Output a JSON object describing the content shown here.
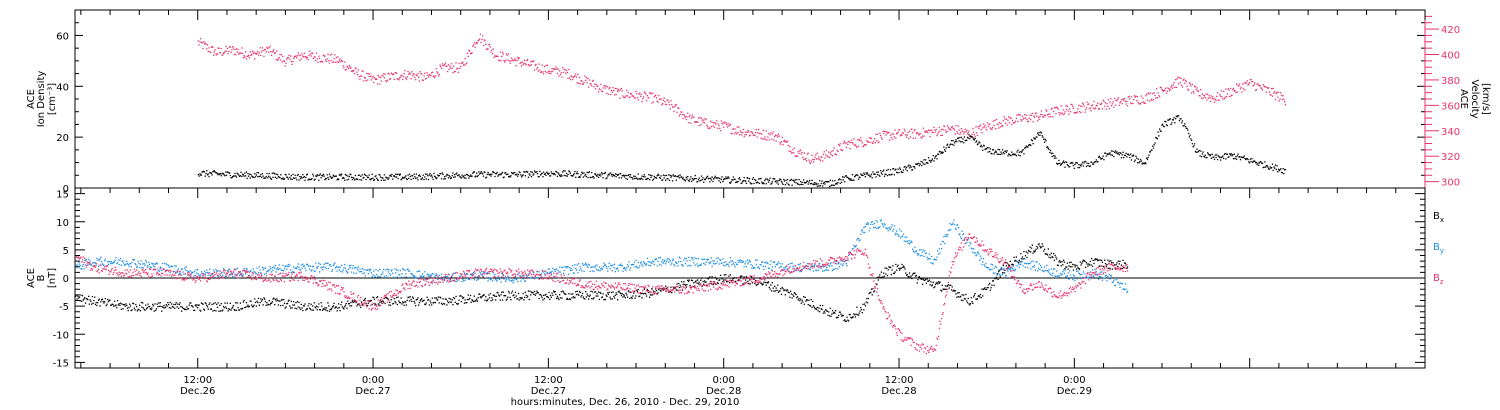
{
  "chart_data": [
    {
      "type": "scatter",
      "panel": "top",
      "ylabel": [
        "ACE",
        "Ion Density",
        "[cm⁻³]"
      ],
      "ylabel_right": [
        "ACE",
        "Velocity",
        "[km/s]"
      ],
      "ylim": [
        0,
        70
      ],
      "yticks": [
        0,
        20,
        40,
        60
      ],
      "ylim_right": [
        295,
        435
      ],
      "yticks_right": [
        300,
        320,
        340,
        360,
        380,
        400,
        420
      ],
      "series": [
        {
          "name": "Ion Density",
          "axis": "left",
          "color": "#000000",
          "x": [
            0,
            0.1,
            0.2,
            0.3,
            0.4,
            0.5,
            0.6,
            0.7,
            0.8,
            0.9,
            1.0,
            1.1,
            1.2,
            1.3,
            1.4,
            1.5,
            1.6,
            1.7,
            1.8,
            1.85,
            1.9,
            1.95,
            2.0,
            2.05,
            2.1,
            2.15,
            2.2,
            2.25,
            2.3,
            2.35,
            2.4,
            2.45,
            2.5,
            2.55,
            2.6,
            2.65,
            2.7,
            2.75,
            2.8,
            2.85,
            2.9,
            2.95,
            3.0,
            3.05,
            3.1
          ],
          "y": [
            6,
            5.5,
            5,
            4.5,
            4.5,
            4.5,
            4.5,
            5,
            5.5,
            5.5,
            6,
            5.5,
            5,
            4.5,
            4,
            3.5,
            3,
            2.5,
            2,
            4,
            5,
            6,
            7,
            9,
            12,
            18,
            20,
            15,
            14,
            14,
            22,
            10,
            9,
            10,
            14,
            13,
            10,
            25,
            28,
            14,
            12,
            13,
            11,
            9,
            7
          ]
        },
        {
          "name": "Velocity",
          "axis": "right",
          "color": "#e8336b",
          "x": [
            0,
            0.05,
            0.1,
            0.15,
            0.2,
            0.25,
            0.3,
            0.35,
            0.4,
            0.45,
            0.5,
            0.55,
            0.6,
            0.65,
            0.7,
            0.75,
            0.8,
            0.85,
            0.9,
            0.95,
            1.0,
            1.05,
            1.1,
            1.15,
            1.2,
            1.25,
            1.3,
            1.35,
            1.4,
            1.45,
            1.5,
            1.55,
            1.6,
            1.65,
            1.7,
            1.75,
            1.8,
            1.85,
            1.9,
            1.95,
            2.0,
            2.05,
            2.1,
            2.15,
            2.2,
            2.25,
            2.3,
            2.35,
            2.4,
            2.45,
            2.5,
            2.55,
            2.6,
            2.65,
            2.7,
            2.75,
            2.8,
            2.85,
            2.9,
            2.95,
            3.0,
            3.05,
            3.1
          ],
          "y": [
            410,
            402,
            404,
            400,
            404,
            395,
            400,
            398,
            396,
            386,
            380,
            383,
            385,
            382,
            390,
            390,
            415,
            400,
            396,
            392,
            388,
            386,
            380,
            374,
            370,
            368,
            366,
            360,
            350,
            346,
            344,
            340,
            338,
            336,
            325,
            318,
            322,
            330,
            332,
            336,
            338,
            338,
            340,
            342,
            338,
            344,
            348,
            350,
            352,
            356,
            358,
            360,
            362,
            364,
            366,
            372,
            380,
            370,
            366,
            372,
            378,
            372,
            365
          ]
        }
      ]
    },
    {
      "type": "scatter",
      "panel": "bottom",
      "ylabel": [
        "ACE",
        "B",
        "[nT]"
      ],
      "ylim": [
        -16,
        16
      ],
      "yticks": [
        -15,
        -10,
        -5,
        0,
        5,
        10,
        15
      ],
      "xlabel": "hours:minutes, Dec. 26, 2010 - Dec. 29, 2010",
      "xlim": [
        -0.35,
        3.5
      ],
      "x_tick_labels": [
        {
          "x": 0,
          "hm": "12:00",
          "day": "Dec.26"
        },
        {
          "x": 0.5,
          "hm": "0:00",
          "day": "Dec.27"
        },
        {
          "x": 1.0,
          "hm": "12:00",
          "day": "Dec.27"
        },
        {
          "x": 1.5,
          "hm": "0:00",
          "day": "Dec.28"
        },
        {
          "x": 2.0,
          "hm": "12:00",
          "day": "Dec.28"
        },
        {
          "x": 2.5,
          "hm": "0:00",
          "day": "Dec.29"
        }
      ],
      "series": [
        {
          "name": "Bx",
          "label_main": "B",
          "label_sub": "x",
          "color": "#000000",
          "x": [
            -0.35,
            -0.3,
            -0.2,
            -0.1,
            0,
            0.1,
            0.2,
            0.3,
            0.4,
            0.5,
            0.6,
            0.7,
            0.8,
            0.9,
            1.0,
            1.1,
            1.2,
            1.3,
            1.4,
            1.5,
            1.6,
            1.7,
            1.8,
            1.85,
            1.9,
            1.95,
            2.0,
            2.05,
            2.1,
            2.15,
            2.2,
            2.25,
            2.3,
            2.35,
            2.4,
            2.45,
            2.5,
            2.55,
            2.6,
            2.65
          ],
          "y": [
            -3,
            -4,
            -5,
            -5,
            -5,
            -5,
            -4,
            -5,
            -5,
            -4,
            -4,
            -4,
            -3.5,
            -3,
            -3,
            -3,
            -3,
            -2.5,
            -1,
            0,
            -0.5,
            -3,
            -6,
            -7,
            -5,
            1,
            2,
            0,
            -1,
            -2,
            -4,
            -2,
            2,
            4,
            6,
            3,
            2,
            3,
            2.5,
            2.5
          ]
        },
        {
          "name": "By",
          "label_main": "B",
          "label_sub": "y",
          "color": "#1f8fe5",
          "x": [
            -0.35,
            -0.3,
            -0.2,
            -0.1,
            0,
            0.1,
            0.2,
            0.3,
            0.4,
            0.5,
            0.6,
            0.7,
            0.8,
            0.9,
            1.0,
            1.1,
            1.2,
            1.3,
            1.4,
            1.5,
            1.6,
            1.7,
            1.8,
            1.85,
            1.9,
            1.95,
            2.0,
            2.05,
            2.1,
            2.15,
            2.2,
            2.25,
            2.3,
            2.35,
            2.4,
            2.45,
            2.5,
            2.55,
            2.6,
            2.65
          ],
          "y": [
            2,
            3,
            3,
            2,
            1,
            1,
            1.5,
            2,
            2,
            1,
            1,
            0,
            0.5,
            0,
            1,
            2,
            2,
            3,
            3,
            3,
            2.5,
            2,
            2,
            3,
            9,
            10,
            8,
            5,
            3,
            10,
            6,
            2,
            1,
            3,
            2,
            1,
            0.5,
            1,
            0,
            -2
          ]
        },
        {
          "name": "Bz",
          "label_main": "B",
          "label_sub": "z",
          "color": "#e8336b",
          "x": [
            -0.35,
            -0.3,
            -0.2,
            -0.1,
            0,
            0.1,
            0.2,
            0.3,
            0.4,
            0.5,
            0.6,
            0.7,
            0.8,
            0.9,
            1.0,
            1.1,
            1.2,
            1.3,
            1.4,
            1.5,
            1.6,
            1.7,
            1.8,
            1.85,
            1.9,
            1.95,
            2.0,
            2.05,
            2.1,
            2.15,
            2.2,
            2.25,
            2.3,
            2.35,
            2.4,
            2.45,
            2.5,
            2.55,
            2.6,
            2.65
          ],
          "y": [
            4,
            2,
            1,
            1,
            0,
            1,
            0,
            0.5,
            -2,
            -5,
            -1,
            0,
            1,
            1,
            0.5,
            -1,
            -1.5,
            -2,
            -2,
            -1,
            0,
            2,
            3,
            4,
            5,
            -5,
            -10,
            -12,
            -13,
            3,
            8,
            5,
            3,
            -2,
            -1,
            -3,
            -2,
            1,
            2,
            2
          ]
        }
      ]
    }
  ]
}
